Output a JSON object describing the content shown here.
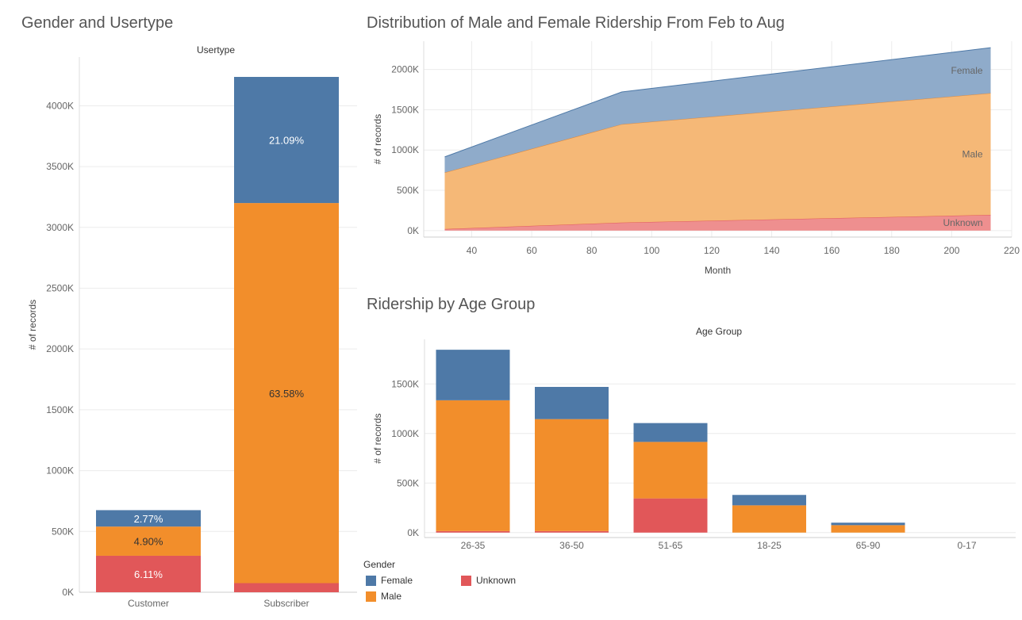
{
  "colors": {
    "Female": "#4e79a7",
    "Male": "#f28e2b",
    "Unknown": "#e15759"
  },
  "legend": {
    "title": "Gender",
    "items": [
      "Female",
      "Male",
      "Unknown"
    ]
  },
  "chart_data": [
    {
      "id": "usertype",
      "type": "bar",
      "title": "Gender and Usertype",
      "header": "Usertype",
      "ylabel": "# of records",
      "ylim": [
        0,
        4400000
      ],
      "yticks": [
        0,
        500000,
        1000000,
        1500000,
        2000000,
        2500000,
        3000000,
        3500000,
        4000000
      ],
      "ytick_labels": [
        "0K",
        "500K",
        "1000K",
        "1500K",
        "2000K",
        "2500K",
        "3000K",
        "3500K",
        "4000K"
      ],
      "categories": [
        "Customer",
        "Subscriber"
      ],
      "series": [
        {
          "name": "Unknown",
          "values": [
            300000,
            75000
          ],
          "labels": [
            "6.11%",
            ""
          ]
        },
        {
          "name": "Male",
          "values": [
            240000,
            3125000
          ],
          "labels": [
            "4.90%",
            "63.58%"
          ]
        },
        {
          "name": "Female",
          "values": [
            135000,
            1037000
          ],
          "labels": [
            "2.77%",
            "21.09%"
          ]
        }
      ]
    },
    {
      "id": "distribution",
      "type": "area",
      "title": "Distribution of Male and Female Ridership From Feb to Aug",
      "xlabel": "Month",
      "ylabel": "# of records",
      "xlim": [
        24,
        220
      ],
      "ylim": [
        -80000,
        2350000
      ],
      "xticks": [
        40,
        60,
        80,
        100,
        120,
        140,
        160,
        180,
        200,
        220
      ],
      "yticks": [
        0,
        500000,
        1000000,
        1500000,
        2000000
      ],
      "ytick_labels": [
        "0K",
        "500K",
        "1000K",
        "1500K",
        "2000K"
      ],
      "x": [
        31,
        90,
        213
      ],
      "series": [
        {
          "name": "Unknown",
          "values": [
            20000,
            100000,
            195000
          ],
          "label": "Unknown"
        },
        {
          "name": "Male",
          "values": [
            700000,
            1220000,
            1510000
          ],
          "label": "Male"
        },
        {
          "name": "Female",
          "values": [
            195000,
            400000,
            565000
          ],
          "label": "Female"
        }
      ]
    },
    {
      "id": "agegroup",
      "type": "bar",
      "title": "Ridership by Age Group",
      "header": "Age Group",
      "ylabel": "# of records",
      "ylim": [
        -50000,
        1950000
      ],
      "yticks": [
        0,
        500000,
        1000000,
        1500000
      ],
      "ytick_labels": [
        "0K",
        "500K",
        "1000K",
        "1500K"
      ],
      "categories": [
        "26-35",
        "36-50",
        "51-65",
        "18-25",
        "65-90",
        "0-17"
      ],
      "series": [
        {
          "name": "Unknown",
          "values": [
            15000,
            15000,
            345000,
            0,
            0,
            0
          ]
        },
        {
          "name": "Male",
          "values": [
            1320000,
            1130000,
            570000,
            275000,
            75000,
            0
          ]
        },
        {
          "name": "Female",
          "values": [
            510000,
            325000,
            190000,
            105000,
            25000,
            0
          ]
        }
      ]
    }
  ]
}
